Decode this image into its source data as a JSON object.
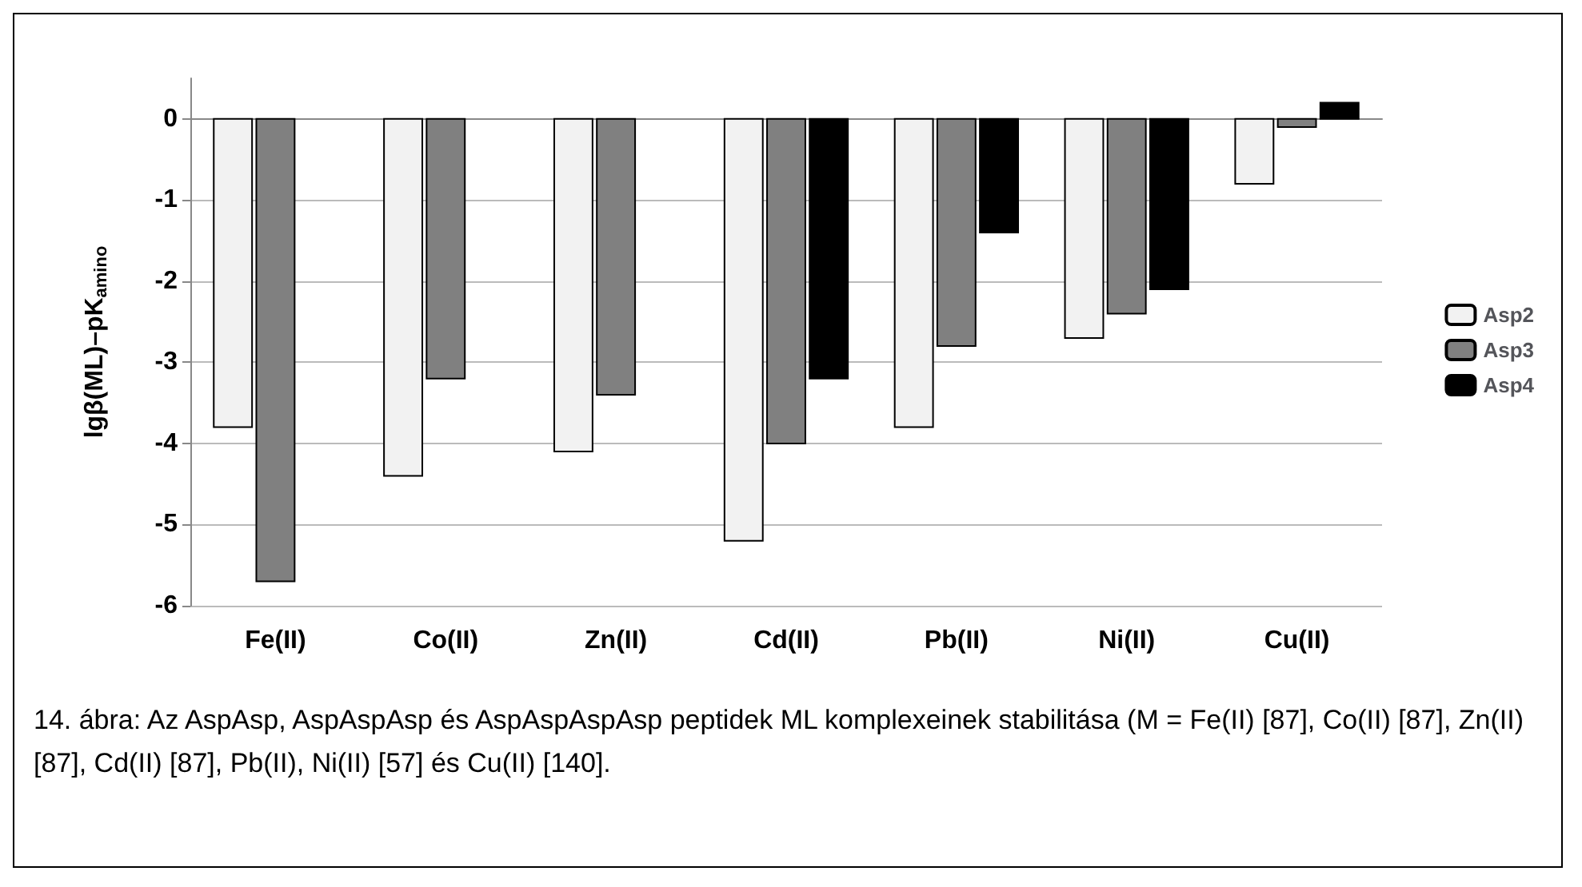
{
  "chart_data": {
    "type": "bar",
    "ylabel": "lgβ(ML)–pK$_{amino}$",
    "categories": [
      "Fe(II)",
      "Co(II)",
      "Zn(II)",
      "Cd(II)",
      "Pb(II)",
      "Ni(II)",
      "Cu(II)"
    ],
    "series": [
      {
        "name": "Asp2",
        "color": "#f2f2f2",
        "values": [
          -3.8,
          -4.4,
          -4.1,
          -5.2,
          -3.8,
          -2.7,
          -0.8
        ]
      },
      {
        "name": "Asp3",
        "color": "#808080",
        "values": [
          -5.7,
          -3.2,
          -3.4,
          -4.0,
          -2.8,
          -2.4,
          -0.1
        ]
      },
      {
        "name": "Asp4",
        "color": "#000000",
        "values": [
          null,
          null,
          null,
          -3.2,
          -1.4,
          -2.1,
          0.2
        ]
      }
    ],
    "ylim": [
      -6,
      0.5
    ],
    "yticks": [
      -6,
      -5,
      -4,
      -3,
      -2,
      -1,
      0
    ],
    "grid": "y",
    "legend": "right",
    "annotations": [
      "14. ábra: Az AspAsp, AspAspAsp és AspAspAspAsp peptidek ML komplexeinek stabilitása (M = Fe(II) [87], Co(II) [87], Zn(II) [87], Cd(II) [87], Pb(II), Ni(II) [57] és Cu(II) [140]."
    ]
  }
}
